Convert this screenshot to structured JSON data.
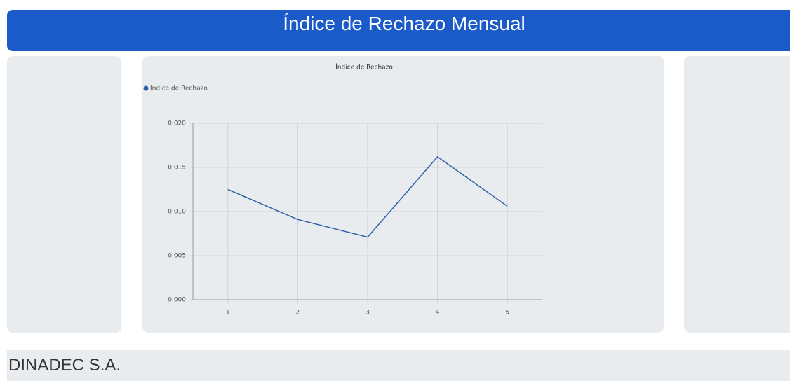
{
  "header": {
    "title": "Índice de Rechazo Mensual"
  },
  "chart_data": {
    "type": "line",
    "title": "Índice de Rechazo",
    "categories": [
      "1",
      "2",
      "3",
      "4",
      "5"
    ],
    "series": [
      {
        "name": "Indice de Rechazo",
        "color": "#2e5fa8",
        "values": [
          0.0125,
          0.0091,
          0.0071,
          0.0162,
          0.0106
        ]
      }
    ],
    "ylim": [
      0,
      0.02
    ],
    "yticks": [
      {
        "value": 0,
        "label": "0.000"
      },
      {
        "value": 0.005,
        "label": "0.005"
      },
      {
        "value": 0.01,
        "label": "0.010"
      },
      {
        "value": 0.015,
        "label": "0.015"
      },
      {
        "value": 0.02,
        "label": "0.020"
      }
    ],
    "grid": true,
    "legend": "top-left"
  },
  "footer": {
    "text": "DINADEC S.A."
  }
}
